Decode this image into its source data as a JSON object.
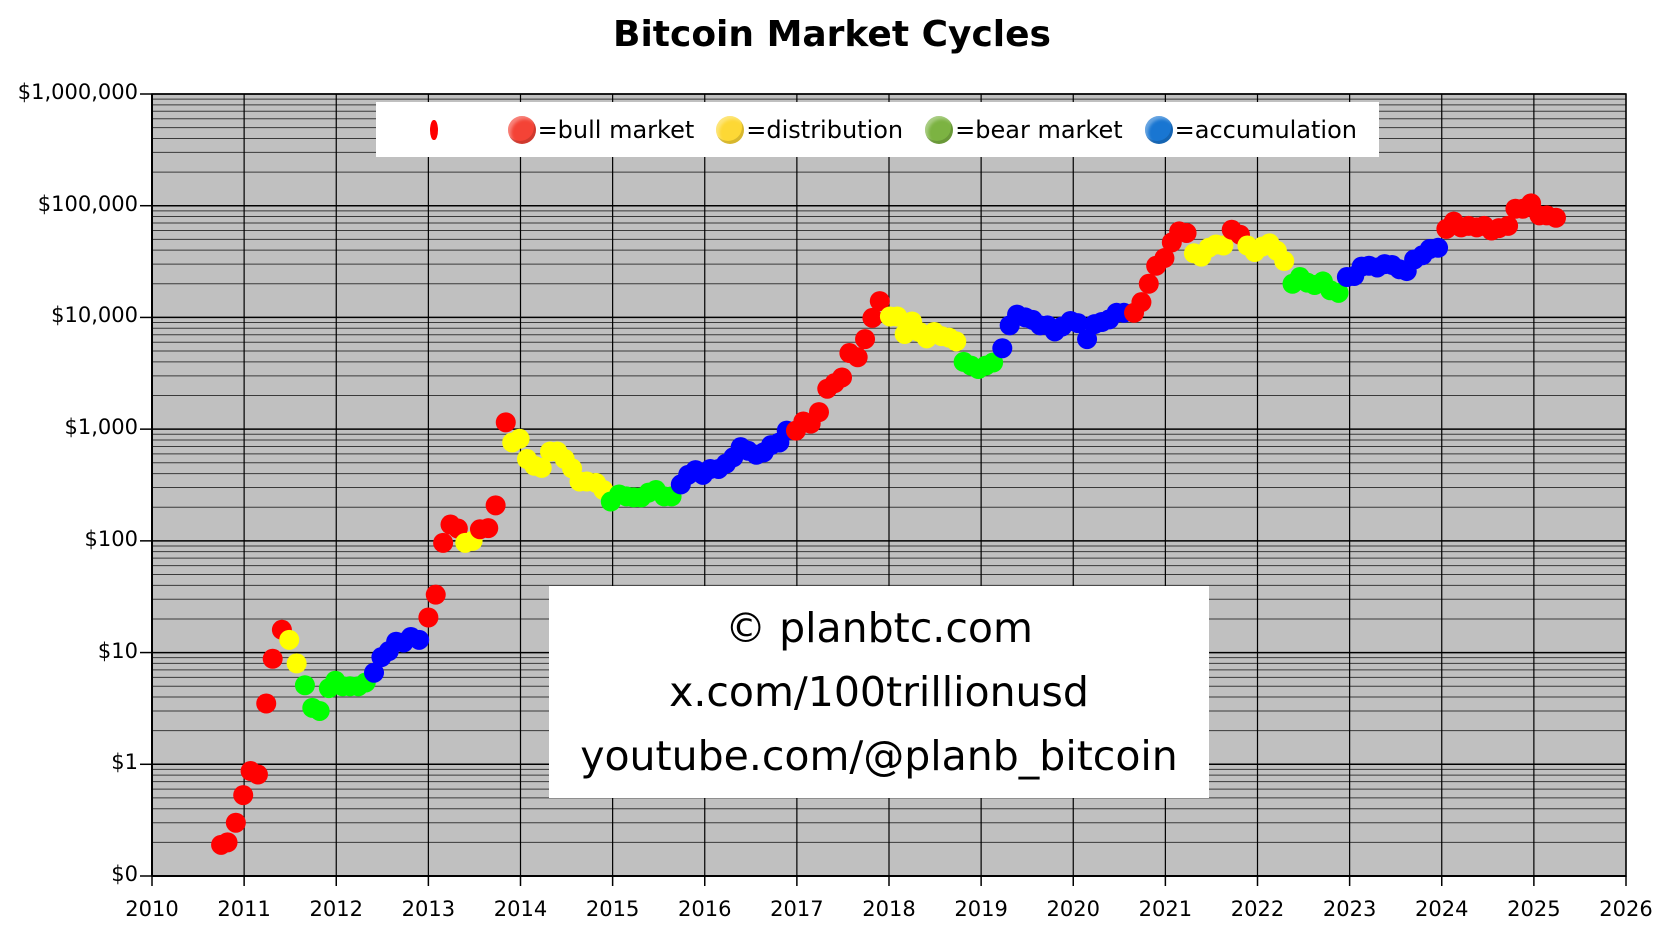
{
  "chart_data": {
    "type": "scatter",
    "title": "Bitcoin Market Cycles",
    "xlabel": "",
    "ylabel": "",
    "yscale": "log",
    "xlim": [
      2010,
      2026
    ],
    "ylim": [
      0.1,
      1000000
    ],
    "grid": true,
    "x_ticks": [
      "2010",
      "2011",
      "2012",
      "2013",
      "2014",
      "2015",
      "2016",
      "2017",
      "2018",
      "2019",
      "2020",
      "2021",
      "2022",
      "2023",
      "2024",
      "2025",
      "2026"
    ],
    "y_ticks": [
      {
        "value": 1000000,
        "label": "$1,000,000"
      },
      {
        "value": 100000,
        "label": "$100,000"
      },
      {
        "value": 10000,
        "label": "$10,000"
      },
      {
        "value": 1000,
        "label": "$1,000"
      },
      {
        "value": 100,
        "label": "$100"
      },
      {
        "value": 10,
        "label": "$10"
      },
      {
        "value": 1,
        "label": "$1"
      },
      {
        "value": 0.1,
        "label": "$0"
      }
    ],
    "legend": {
      "position": "top",
      "entries": [
        {
          "label": "",
          "color": "#ff0000",
          "plain": true
        },
        {
          "label": "=bull market",
          "color": "#f44336"
        },
        {
          "label": "=distribution",
          "color": "#fdd835"
        },
        {
          "label": "=bear market",
          "color": "#7cb342"
        },
        {
          "label": "=accumulation",
          "color": "#1976d2"
        }
      ]
    },
    "phase_colors": {
      "bull": "#ff0000",
      "distribution": "#ffff00",
      "bear": "#00ff00",
      "accumulation": "#0000ff"
    },
    "series": [
      {
        "phase": "bull",
        "points": [
          [
            2010.75,
            0.19
          ],
          [
            2010.82,
            0.2
          ],
          [
            2010.91,
            0.3
          ],
          [
            2010.99,
            0.53
          ],
          [
            2011.07,
            0.87
          ],
          [
            2011.15,
            0.81
          ],
          [
            2011.24,
            3.5
          ],
          [
            2011.31,
            8.8
          ],
          [
            2011.41,
            16
          ]
        ]
      },
      {
        "phase": "distribution",
        "points": [
          [
            2011.49,
            13
          ],
          [
            2011.57,
            8
          ]
        ]
      },
      {
        "phase": "bear",
        "points": [
          [
            2011.66,
            5.1
          ],
          [
            2011.74,
            3.2
          ],
          [
            2011.82,
            3.0
          ],
          [
            2011.92,
            4.8
          ],
          [
            2011.99,
            5.6
          ],
          [
            2012.07,
            5.0
          ],
          [
            2012.15,
            5.0
          ],
          [
            2012.24,
            5.0
          ],
          [
            2012.32,
            5.4
          ]
        ]
      },
      {
        "phase": "accumulation",
        "points": [
          [
            2012.41,
            6.6
          ],
          [
            2012.49,
            9.1
          ],
          [
            2012.57,
            10.3
          ],
          [
            2012.65,
            12.5
          ],
          [
            2012.73,
            12.3
          ],
          [
            2012.81,
            13.8
          ],
          [
            2012.9,
            13
          ]
        ]
      },
      {
        "phase": "bull",
        "points": [
          [
            2013.0,
            20.6
          ],
          [
            2013.08,
            33
          ],
          [
            2013.16,
            96
          ],
          [
            2013.24,
            140
          ],
          [
            2013.32,
            129
          ]
        ]
      },
      {
        "phase": "distribution",
        "points": [
          [
            2013.4,
            96
          ],
          [
            2013.48,
            100
          ]
        ]
      },
      {
        "phase": "bull",
        "points": [
          [
            2013.56,
            127
          ],
          [
            2013.65,
            130
          ],
          [
            2013.73,
            208
          ],
          [
            2013.84,
            1150
          ]
        ]
      },
      {
        "phase": "distribution",
        "points": [
          [
            2013.91,
            760
          ],
          [
            2013.99,
            820
          ],
          [
            2014.07,
            540
          ],
          [
            2014.15,
            470
          ],
          [
            2014.23,
            450
          ],
          [
            2014.32,
            630
          ],
          [
            2014.4,
            630
          ],
          [
            2014.48,
            540
          ],
          [
            2014.56,
            445
          ],
          [
            2014.64,
            340
          ],
          [
            2014.72,
            340
          ],
          [
            2014.82,
            330
          ],
          [
            2014.9,
            285
          ]
        ]
      },
      {
        "phase": "bear",
        "points": [
          [
            2014.98,
            225
          ],
          [
            2015.07,
            260
          ],
          [
            2015.15,
            250
          ],
          [
            2015.23,
            245
          ],
          [
            2015.31,
            245
          ],
          [
            2015.39,
            270
          ],
          [
            2015.47,
            285
          ],
          [
            2015.56,
            250
          ],
          [
            2015.64,
            250
          ]
        ]
      },
      {
        "phase": "accumulation",
        "points": [
          [
            2015.74,
            320
          ],
          [
            2015.82,
            390
          ],
          [
            2015.9,
            430
          ],
          [
            2015.98,
            390
          ],
          [
            2016.06,
            440
          ],
          [
            2016.15,
            440
          ],
          [
            2016.23,
            490
          ],
          [
            2016.31,
            560
          ],
          [
            2016.39,
            690
          ],
          [
            2016.47,
            640
          ],
          [
            2016.56,
            590
          ],
          [
            2016.64,
            620
          ],
          [
            2016.72,
            720
          ],
          [
            2016.81,
            760
          ],
          [
            2016.89,
            970
          ]
        ]
      },
      {
        "phase": "bull",
        "points": [
          [
            2016.99,
            970
          ],
          [
            2017.07,
            1170
          ],
          [
            2017.15,
            1120
          ],
          [
            2017.24,
            1420
          ],
          [
            2017.33,
            2300
          ],
          [
            2017.41,
            2580
          ],
          [
            2017.49,
            2900
          ],
          [
            2017.57,
            4800
          ],
          [
            2017.66,
            4400
          ],
          [
            2017.74,
            6400
          ],
          [
            2017.82,
            9900
          ],
          [
            2017.9,
            14000
          ]
        ]
      },
      {
        "phase": "distribution",
        "points": [
          [
            2018.01,
            10200
          ],
          [
            2018.09,
            10200
          ],
          [
            2018.17,
            7100
          ],
          [
            2018.25,
            9200
          ],
          [
            2018.33,
            7400
          ],
          [
            2018.41,
            6500
          ],
          [
            2018.49,
            7400
          ],
          [
            2018.57,
            6800
          ],
          [
            2018.65,
            6600
          ],
          [
            2018.73,
            6100
          ]
        ]
      },
      {
        "phase": "bear",
        "points": [
          [
            2018.81,
            4000
          ],
          [
            2018.89,
            3700
          ],
          [
            2018.97,
            3450
          ],
          [
            2019.05,
            3700
          ],
          [
            2019.13,
            3950
          ]
        ]
      },
      {
        "phase": "accumulation",
        "points": [
          [
            2019.23,
            5300
          ],
          [
            2019.31,
            8500
          ],
          [
            2019.39,
            10600
          ],
          [
            2019.48,
            10000
          ],
          [
            2019.56,
            9500
          ],
          [
            2019.64,
            8500
          ],
          [
            2019.72,
            8500
          ],
          [
            2019.8,
            7500
          ],
          [
            2019.88,
            8300
          ],
          [
            2019.97,
            9300
          ],
          [
            2020.05,
            8900
          ],
          [
            2020.15,
            6400
          ],
          [
            2020.23,
            8700
          ],
          [
            2020.31,
            9100
          ],
          [
            2020.39,
            9600
          ],
          [
            2020.47,
            11000
          ],
          [
            2020.55,
            11000
          ]
        ]
      },
      {
        "phase": "bull",
        "points": [
          [
            2020.66,
            11000
          ],
          [
            2020.74,
            13700
          ],
          [
            2020.82,
            20000
          ],
          [
            2020.9,
            29000
          ],
          [
            2020.99,
            34000
          ],
          [
            2021.07,
            47000
          ],
          [
            2021.15,
            59000
          ],
          [
            2021.23,
            57000
          ]
        ]
      },
      {
        "phase": "distribution",
        "points": [
          [
            2021.31,
            37500
          ],
          [
            2021.39,
            35000
          ],
          [
            2021.47,
            42000
          ],
          [
            2021.55,
            45000
          ],
          [
            2021.63,
            44000
          ]
        ]
      },
      {
        "phase": "bull",
        "points": [
          [
            2021.72,
            61000
          ],
          [
            2021.81,
            55000
          ]
        ]
      },
      {
        "phase": "distribution",
        "points": [
          [
            2021.89,
            44000
          ],
          [
            2021.97,
            38500
          ],
          [
            2022.05,
            43000
          ],
          [
            2022.13,
            46000
          ],
          [
            2022.21,
            39500
          ],
          [
            2022.29,
            32000
          ]
        ]
      },
      {
        "phase": "bear",
        "points": [
          [
            2022.38,
            20000
          ],
          [
            2022.46,
            23000
          ],
          [
            2022.54,
            20500
          ],
          [
            2022.62,
            19500
          ],
          [
            2022.71,
            21000
          ],
          [
            2022.79,
            17500
          ],
          [
            2022.88,
            16600
          ]
        ]
      },
      {
        "phase": "accumulation",
        "points": [
          [
            2022.97,
            23000
          ],
          [
            2023.05,
            23500
          ],
          [
            2023.13,
            28500
          ],
          [
            2023.21,
            29000
          ],
          [
            2023.3,
            28000
          ],
          [
            2023.38,
            30000
          ],
          [
            2023.46,
            29500
          ],
          [
            2023.54,
            27000
          ],
          [
            2023.62,
            26000
          ],
          [
            2023.7,
            33000
          ],
          [
            2023.79,
            36000
          ],
          [
            2023.87,
            41000
          ],
          [
            2023.96,
            42000
          ]
        ]
      },
      {
        "phase": "bull",
        "points": [
          [
            2024.05,
            62000
          ],
          [
            2024.13,
            72000
          ],
          [
            2024.21,
            64000
          ],
          [
            2024.29,
            66000
          ],
          [
            2024.38,
            64000
          ],
          [
            2024.46,
            66000
          ],
          [
            2024.54,
            60000
          ],
          [
            2024.62,
            63000
          ],
          [
            2024.72,
            66000
          ],
          [
            2024.8,
            94000
          ],
          [
            2024.88,
            94000
          ],
          [
            2024.97,
            105000
          ],
          [
            2025.06,
            82000
          ],
          [
            2025.14,
            82000
          ],
          [
            2025.24,
            78000
          ]
        ]
      }
    ]
  },
  "watermark": {
    "lines": [
      "© planbtc.com",
      "x.com/100trillionusd",
      "youtube.com/@planb_bitcoin"
    ]
  }
}
